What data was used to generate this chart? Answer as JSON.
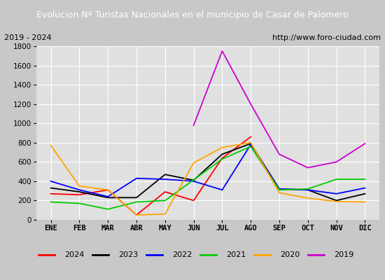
{
  "title": "Evolucion Nº Turistas Nacionales en el municipio de Casar de Palomero",
  "subtitle_left": "2019 - 2024",
  "subtitle_right": "http://www.foro-ciudad.com",
  "months": [
    "ENE",
    "FEB",
    "MAR",
    "ABR",
    "MAY",
    "JUN",
    "JUL",
    "AGO",
    "SEP",
    "OCT",
    "NOV",
    "DIC"
  ],
  "series": {
    "2024": [
      270,
      260,
      310,
      50,
      290,
      200,
      640,
      860,
      null,
      null,
      null,
      null
    ],
    "2023": [
      330,
      290,
      230,
      230,
      470,
      410,
      680,
      790,
      320,
      310,
      200,
      270
    ],
    "2022": [
      400,
      310,
      240,
      430,
      420,
      400,
      310,
      780,
      320,
      310,
      270,
      330
    ],
    "2021": [
      185,
      170,
      110,
      185,
      200,
      415,
      630,
      760,
      310,
      320,
      420,
      420
    ],
    "2020": [
      770,
      350,
      310,
      50,
      60,
      590,
      750,
      800,
      280,
      225,
      190,
      185
    ],
    "2019": [
      null,
      null,
      null,
      null,
      null,
      980,
      1750,
      1200,
      680,
      540,
      600,
      790
    ]
  },
  "colors": {
    "2024": "#ff0000",
    "2023": "#000000",
    "2022": "#0000ff",
    "2021": "#00cc00",
    "2020": "#ffa500",
    "2019": "#cc00cc"
  },
  "ylim": [
    0,
    1800
  ],
  "yticks": [
    0,
    200,
    400,
    600,
    800,
    1000,
    1200,
    1400,
    1600,
    1800
  ],
  "title_bg_color": "#4472c4",
  "title_text_color": "#ffffff",
  "plot_bg_color": "#e0e0e0",
  "grid_color": "#ffffff",
  "fig_bg_color": "#c8c8c8",
  "legend_fontsize": 8,
  "axis_fontsize": 7.5,
  "title_fontsize": 9,
  "subtitle_fontsize": 8
}
